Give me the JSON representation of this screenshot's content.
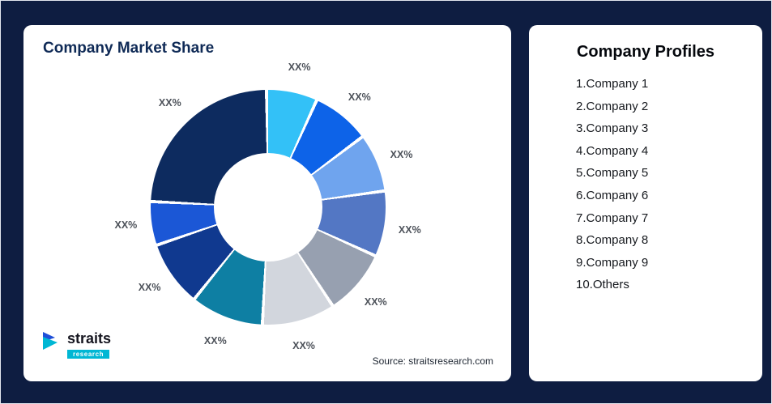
{
  "page": {
    "background": "#0e1d41"
  },
  "left_card": {
    "title": "Company Market Share",
    "source": "Source: straitsresearch.com",
    "logo": {
      "name": "straits",
      "sub": "research"
    }
  },
  "right_card": {
    "title": "Company Profiles",
    "items": [
      "1.Company 1",
      "2.Company 2",
      "3.Company 3",
      "4.Company 4",
      "5.Company 5",
      "6.Company 6",
      "7.Company 7",
      "8.Company 8",
      "9.Company 9",
      "10.Others"
    ]
  },
  "chart_data": {
    "type": "pie",
    "subtype": "donut",
    "title": "Company Market Share",
    "legend_position": "none",
    "segments_note": "all slices labeled XX% on screen; values are visual arc-size estimates in percent",
    "categories": [
      "Company 1",
      "Company 2",
      "Company 3",
      "Company 4",
      "Company 5",
      "Company 6",
      "Company 7",
      "Company 8",
      "Company 9",
      "Others"
    ],
    "labels": [
      "XX%",
      "XX%",
      "XX%",
      "XX%",
      "XX%",
      "XX%",
      "XX%",
      "XX%",
      "XX%",
      "XX%"
    ],
    "values": [
      7,
      8,
      8,
      9,
      9,
      10,
      10,
      9,
      6,
      24
    ],
    "colors": [
      "#33c1f7",
      "#0d63e8",
      "#6fa4ee",
      "#5377c4",
      "#97a0b0",
      "#d2d6dd",
      "#0e7fa3",
      "#10398f",
      "#1b57d6",
      "#0d2b5f"
    ],
    "slice_border_color": "#ffffff"
  }
}
